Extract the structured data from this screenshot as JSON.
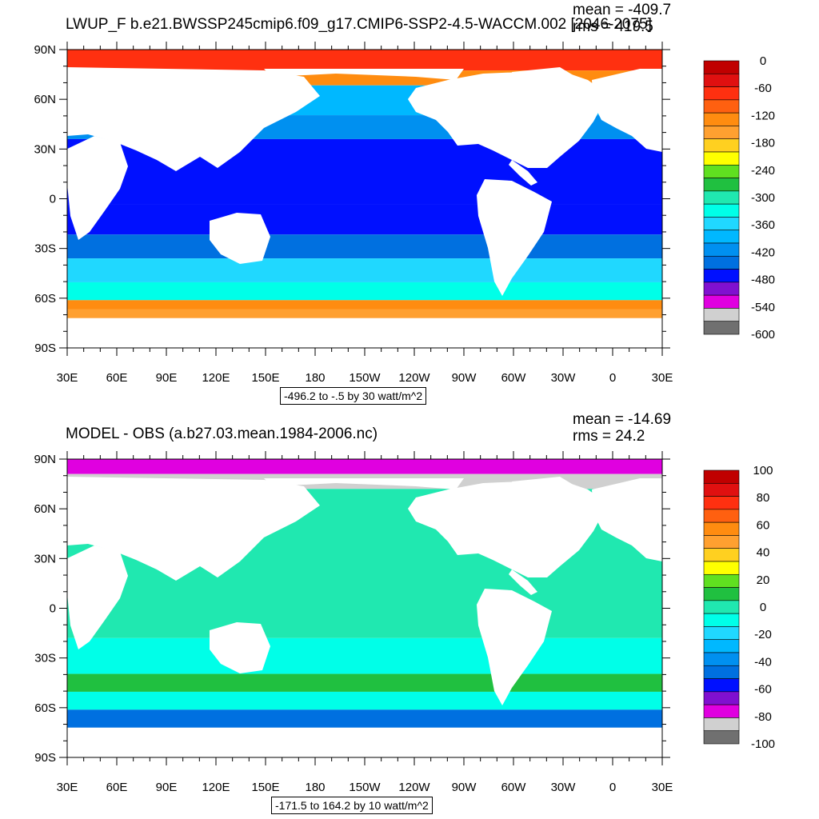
{
  "chart_data": [
    {
      "type": "heatmap",
      "title": "LWUP_F b.e21.BWSSP245cmip6.f09_g17.CMIP6-SSP2-4.5-WACCM.002 [2046-2075]",
      "stats": {
        "mean": "mean = -409.7",
        "rms": "rms = 419.5"
      },
      "range_text": "-496.2 to -.5 by 30 watt/m^2",
      "x_ticks": [
        "30E",
        "60E",
        "90E",
        "120E",
        "150E",
        "180",
        "150W",
        "120W",
        "90W",
        "60W",
        "30W",
        "0",
        "30E"
      ],
      "y_ticks": [
        "90N",
        "60N",
        "30N",
        "0",
        "30S",
        "60S",
        "90S"
      ],
      "colorbar": {
        "labels": [
          "0",
          "-60",
          "-120",
          "-180",
          "-240",
          "-300",
          "-360",
          "-420",
          "-480",
          "-540",
          "-600"
        ],
        "colors": [
          "#c00000",
          "#e01010",
          "#ff3010",
          "#ff6010",
          "#ff8c10",
          "#ffa030",
          "#ffd020",
          "#ffff00",
          "#60e020",
          "#20c040",
          "#20e8b0",
          "#00ffe8",
          "#20d8ff",
          "#00b8ff",
          "#0090f0",
          "#0070e0",
          "#0010ff",
          "#8010d0",
          "#e000e0",
          "#d0d0d0",
          "#707070"
        ]
      }
    },
    {
      "type": "heatmap",
      "title": "MODEL - OBS (a.b27.03.mean.1984-2006.nc)",
      "stats": {
        "mean": "mean = -14.69",
        "rms": "rms = 24.2"
      },
      "range_text": "-171.5 to 164.2 by 10 watt/m^2",
      "x_ticks": [
        "30E",
        "60E",
        "90E",
        "120E",
        "150E",
        "180",
        "150W",
        "120W",
        "90W",
        "60W",
        "30W",
        "0",
        "30E"
      ],
      "y_ticks": [
        "90N",
        "60N",
        "30N",
        "0",
        "30S",
        "60S",
        "90S"
      ],
      "colorbar": {
        "labels": [
          "100",
          "80",
          "60",
          "40",
          "20",
          "0",
          "-20",
          "-40",
          "-60",
          "-80",
          "-100"
        ],
        "colors": [
          "#c00000",
          "#e01010",
          "#ff3010",
          "#ff6010",
          "#ff8c10",
          "#ffa030",
          "#ffd020",
          "#ffff00",
          "#60e020",
          "#20c040",
          "#20e8b0",
          "#00ffe8",
          "#20d8ff",
          "#00b8ff",
          "#0090f0",
          "#0070e0",
          "#0010ff",
          "#8010d0",
          "#e000e0",
          "#d0d0d0",
          "#707070"
        ]
      }
    }
  ]
}
